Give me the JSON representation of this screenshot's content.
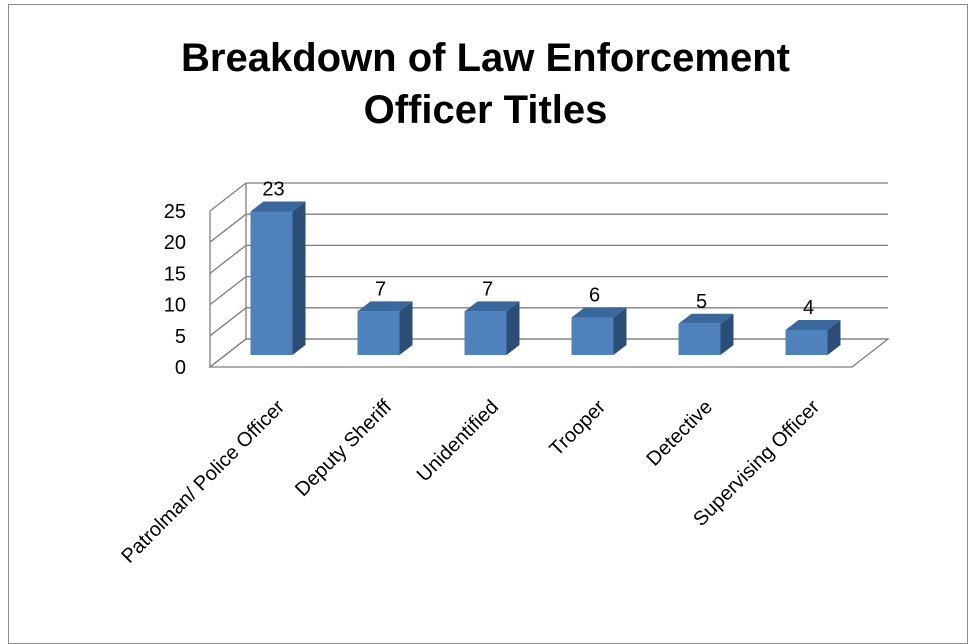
{
  "chart_data": {
    "type": "bar",
    "title": "Breakdown of Law Enforcement Officer Titles",
    "title_lines": [
      "Breakdown of Law Enforcement",
      "Officer Titles"
    ],
    "categories": [
      "Patrolman/ Police Officer",
      "Deputy Sheriff",
      "Unidentified",
      "Trooper",
      "Detective",
      "Supervising Officer"
    ],
    "values": [
      23,
      7,
      7,
      6,
      5,
      4
    ],
    "ylim": [
      0,
      25
    ],
    "yticks": [
      0,
      5,
      10,
      15,
      20,
      25
    ],
    "grid": true,
    "legend": "none",
    "colors": {
      "front": "#4f81bd",
      "side": "#2c4d75",
      "top": "#3a679c"
    }
  }
}
